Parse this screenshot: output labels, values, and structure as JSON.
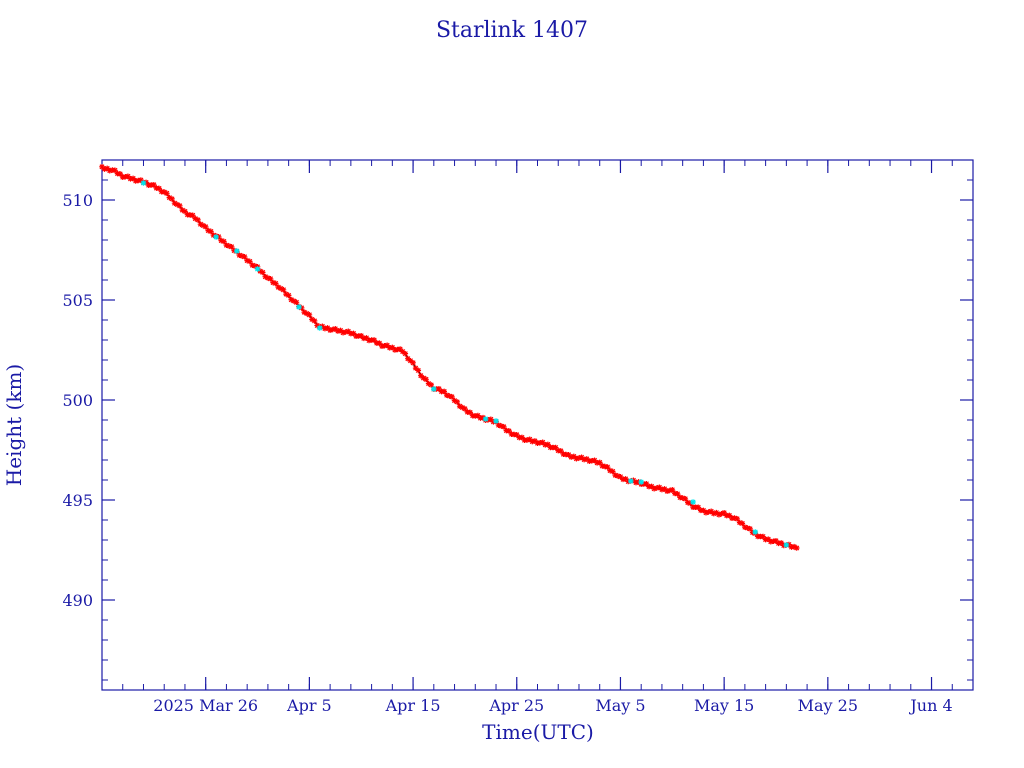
{
  "chart_data": {
    "type": "scatter",
    "title": "Starlink 1407",
    "xlabel": "Time(UTC)",
    "ylabel": "Height (km)",
    "x_ticks": [
      {
        "date": "2025-03-26",
        "label": "2025 Mar 26"
      },
      {
        "date": "2025-04-05",
        "label": "Apr  5"
      },
      {
        "date": "2025-04-15",
        "label": "Apr 15"
      },
      {
        "date": "2025-04-25",
        "label": "Apr 25"
      },
      {
        "date": "2025-05-05",
        "label": "May  5"
      },
      {
        "date": "2025-05-15",
        "label": "May 15"
      },
      {
        "date": "2025-05-25",
        "label": "May 25"
      },
      {
        "date": "2025-06-04",
        "label": "Jun  4"
      }
    ],
    "xlim": [
      "2025-03-16",
      "2025-06-08"
    ],
    "ylim": [
      485.5,
      512
    ],
    "y_ticks": [
      490,
      495,
      500,
      505,
      510
    ],
    "grid": false,
    "colors": {
      "axis": "#1a1aa6",
      "line": "#000000",
      "points": "#ff0000",
      "points_alt": "#00e5ee"
    },
    "series": [
      {
        "points": [
          [
            "2025-03-16",
            511.6
          ],
          [
            "2025-03-17",
            511.5
          ],
          [
            "2025-03-18",
            511.2
          ],
          [
            "2025-03-19",
            511.05
          ],
          [
            "2025-03-20",
            510.9
          ],
          [
            "2025-03-21",
            510.7
          ],
          [
            "2025-03-22",
            510.4
          ],
          [
            "2025-03-23",
            509.9
          ],
          [
            "2025-03-24",
            509.4
          ],
          [
            "2025-03-25",
            509.1
          ],
          [
            "2025-03-26",
            508.6
          ],
          [
            "2025-03-27",
            508.2
          ],
          [
            "2025-03-28",
            507.8
          ],
          [
            "2025-03-29",
            507.4
          ],
          [
            "2025-03-30",
            507.0
          ],
          [
            "2025-03-31",
            506.6
          ],
          [
            "2025-04-01",
            506.1
          ],
          [
            "2025-04-02",
            505.7
          ],
          [
            "2025-04-03",
            505.2
          ],
          [
            "2025-04-04",
            504.7
          ],
          [
            "2025-04-05",
            504.2
          ],
          [
            "2025-04-06",
            503.65
          ],
          [
            "2025-04-07",
            503.55
          ],
          [
            "2025-04-08",
            503.45
          ],
          [
            "2025-04-09",
            503.35
          ],
          [
            "2025-04-10",
            503.15
          ],
          [
            "2025-04-11",
            503.0
          ],
          [
            "2025-04-12",
            502.75
          ],
          [
            "2025-04-13",
            502.6
          ],
          [
            "2025-04-14",
            502.45
          ],
          [
            "2025-04-15",
            501.8
          ],
          [
            "2025-04-16",
            501.1
          ],
          [
            "2025-04-17",
            500.6
          ],
          [
            "2025-04-18",
            500.4
          ],
          [
            "2025-04-19",
            500.0
          ],
          [
            "2025-04-20",
            499.5
          ],
          [
            "2025-04-21",
            499.2
          ],
          [
            "2025-04-22",
            499.05
          ],
          [
            "2025-04-23",
            498.9
          ],
          [
            "2025-04-24",
            498.5
          ],
          [
            "2025-04-25",
            498.2
          ],
          [
            "2025-04-26",
            498.0
          ],
          [
            "2025-04-27",
            497.9
          ],
          [
            "2025-04-28",
            497.75
          ],
          [
            "2025-04-29",
            497.5
          ],
          [
            "2025-04-30",
            497.2
          ],
          [
            "2025-05-01",
            497.1
          ],
          [
            "2025-05-02",
            497.0
          ],
          [
            "2025-05-03",
            496.85
          ],
          [
            "2025-05-04",
            496.5
          ],
          [
            "2025-05-05",
            496.1
          ],
          [
            "2025-05-06",
            495.95
          ],
          [
            "2025-05-07",
            495.85
          ],
          [
            "2025-05-08",
            495.65
          ],
          [
            "2025-05-09",
            495.55
          ],
          [
            "2025-05-10",
            495.45
          ],
          [
            "2025-05-11",
            495.1
          ],
          [
            "2025-05-12",
            494.7
          ],
          [
            "2025-05-13",
            494.45
          ],
          [
            "2025-05-14",
            494.35
          ],
          [
            "2025-05-15",
            494.3
          ],
          [
            "2025-05-16",
            494.1
          ],
          [
            "2025-05-17",
            493.7
          ],
          [
            "2025-05-18",
            493.3
          ],
          [
            "2025-05-19",
            493.05
          ],
          [
            "2025-05-20",
            492.9
          ],
          [
            "2025-05-21",
            492.75
          ],
          [
            "2025-05-22",
            492.6
          ]
        ],
        "highlighted_points": [
          [
            "2025-03-20",
            510.85
          ],
          [
            "2025-03-27",
            508.15
          ],
          [
            "2025-03-29",
            507.45
          ],
          [
            "2025-03-31",
            506.55
          ],
          [
            "2025-04-04",
            504.65
          ],
          [
            "2025-04-06",
            503.6
          ],
          [
            "2025-04-17",
            500.55
          ],
          [
            "2025-04-22",
            499.05
          ],
          [
            "2025-04-23",
            498.95
          ],
          [
            "2025-05-06",
            495.95
          ],
          [
            "2025-05-07",
            495.9
          ],
          [
            "2025-05-12",
            494.9
          ],
          [
            "2025-05-18",
            493.4
          ],
          [
            "2025-05-21",
            492.75
          ]
        ]
      }
    ]
  }
}
